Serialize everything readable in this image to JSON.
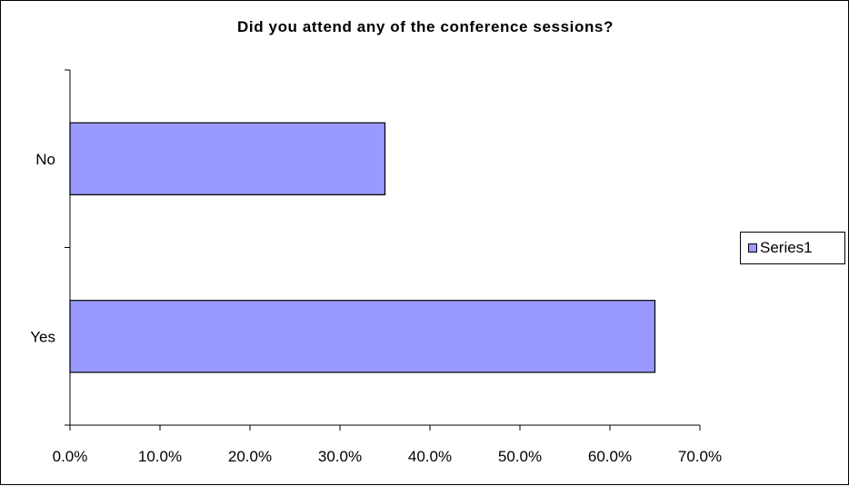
{
  "chart_data": {
    "type": "bar",
    "orientation": "horizontal",
    "title": "Did you attend any of the conference sessions?",
    "categories": [
      "No",
      "Yes"
    ],
    "series": [
      {
        "name": "Series1",
        "values": [
          0.35,
          0.65
        ]
      }
    ],
    "xlim": [
      0,
      0.7
    ],
    "xticks": [
      0,
      0.1,
      0.2,
      0.3,
      0.4,
      0.5,
      0.6,
      0.7
    ],
    "xtick_labels": [
      "0.0%",
      "10.0%",
      "20.0%",
      "30.0%",
      "40.0%",
      "50.0%",
      "60.0%",
      "70.0%"
    ],
    "xlabel": "",
    "ylabel": "",
    "grid": false,
    "legend_position": "right",
    "colors": {
      "bar_fill": "#9999ff",
      "bar_stroke": "#000000",
      "axis": "#000000",
      "border": "#000000",
      "background": "#ffffff"
    }
  }
}
